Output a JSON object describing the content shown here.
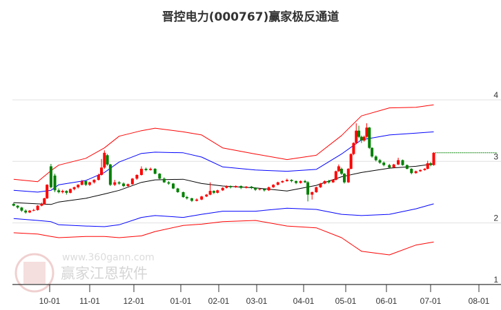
{
  "title": "晋控电力(000767)赢家极反通道",
  "watermark": {
    "brand": "赢家江恩软件",
    "url": "www.360gann.com",
    "seal": [
      "江",
      "赢",
      "恩",
      "家"
    ]
  },
  "colors": {
    "up": "#ff0000",
    "down": "#008000",
    "outer_band": "#ff0000",
    "inner_band": "#0000ff",
    "middle": "#000000",
    "last_price_line": "#008000",
    "grid": "#e0e0e0"
  },
  "chart_data": {
    "type": "candlestick",
    "title": "晋控电力(000767)赢家极反通道",
    "ylim": [
      1,
      4
    ],
    "y_ticks": [
      1,
      2,
      3,
      4
    ],
    "x_ticks": [
      "10-01",
      "11-01",
      "12-01",
      "01-01",
      "02-01",
      "03-01",
      "04-01",
      "05-01",
      "06-01",
      "07-01",
      "08-01"
    ],
    "grid": "horizontal",
    "candle_fields": [
      "date",
      "open",
      "high",
      "low",
      "close"
    ],
    "candles": [
      [
        "09-04",
        2.31,
        2.33,
        2.27,
        2.28
      ],
      [
        "09-07",
        2.28,
        2.29,
        2.23,
        2.25
      ],
      [
        "09-10",
        2.25,
        2.26,
        2.18,
        2.2
      ],
      [
        "09-13",
        2.2,
        2.22,
        2.15,
        2.17
      ],
      [
        "09-16",
        2.17,
        2.21,
        2.16,
        2.2
      ],
      [
        "09-19",
        2.2,
        2.23,
        2.19,
        2.21
      ],
      [
        "09-22",
        2.21,
        2.29,
        2.2,
        2.28
      ],
      [
        "09-25",
        2.28,
        2.33,
        2.27,
        2.31
      ],
      [
        "09-27",
        2.31,
        2.41,
        2.3,
        2.4
      ],
      [
        "09-29",
        2.4,
        2.63,
        2.39,
        2.62
      ],
      [
        "10-02",
        2.92,
        2.96,
        2.56,
        2.58
      ],
      [
        "10-05",
        2.77,
        2.8,
        2.5,
        2.53
      ],
      [
        "10-08",
        2.53,
        2.56,
        2.48,
        2.5
      ],
      [
        "10-11",
        2.5,
        2.54,
        2.48,
        2.52
      ],
      [
        "10-14",
        2.52,
        2.53,
        2.46,
        2.49
      ],
      [
        "10-17",
        2.49,
        2.56,
        2.48,
        2.55
      ],
      [
        "10-20",
        2.55,
        2.59,
        2.53,
        2.58
      ],
      [
        "10-23",
        2.58,
        2.63,
        2.56,
        2.62
      ],
      [
        "10-26",
        2.62,
        2.7,
        2.61,
        2.68
      ],
      [
        "10-29",
        2.68,
        2.69,
        2.6,
        2.62
      ],
      [
        "11-01",
        2.62,
        2.67,
        2.6,
        2.66
      ],
      [
        "11-04",
        2.66,
        2.71,
        2.64,
        2.7
      ],
      [
        "11-07",
        2.7,
        2.8,
        2.69,
        2.78
      ],
      [
        "11-09",
        2.78,
        3.04,
        2.77,
        2.9
      ],
      [
        "11-11",
        2.9,
        3.18,
        2.88,
        3.14
      ],
      [
        "11-13",
        3.1,
        3.12,
        2.93,
        2.95
      ],
      [
        "11-15",
        2.95,
        2.96,
        2.6,
        2.62
      ],
      [
        "11-18",
        2.62,
        2.7,
        2.6,
        2.66
      ],
      [
        "11-21",
        2.66,
        2.68,
        2.62,
        2.64
      ],
      [
        "11-24",
        2.64,
        2.66,
        2.58,
        2.6
      ],
      [
        "11-27",
        2.6,
        2.64,
        2.58,
        2.63
      ],
      [
        "11-30",
        2.63,
        2.73,
        2.62,
        2.72
      ],
      [
        "12-03",
        2.72,
        2.79,
        2.7,
        2.78
      ],
      [
        "12-06",
        2.78,
        2.92,
        2.77,
        2.88
      ],
      [
        "12-09",
        2.88,
        2.9,
        2.84,
        2.86
      ],
      [
        "12-12",
        2.86,
        2.9,
        2.85,
        2.88
      ],
      [
        "12-15",
        2.88,
        2.89,
        2.79,
        2.8
      ],
      [
        "12-18",
        2.8,
        2.81,
        2.71,
        2.72
      ],
      [
        "12-21",
        2.72,
        2.74,
        2.65,
        2.66
      ],
      [
        "12-24",
        2.66,
        2.68,
        2.62,
        2.64
      ],
      [
        "12-27",
        2.64,
        2.65,
        2.55,
        2.56
      ],
      [
        "12-30",
        2.56,
        2.57,
        2.49,
        2.5
      ],
      [
        "01-03",
        2.5,
        2.51,
        2.41,
        2.42
      ],
      [
        "01-06",
        2.42,
        2.44,
        2.38,
        2.4
      ],
      [
        "01-10",
        2.4,
        2.41,
        2.34,
        2.36
      ],
      [
        "01-14",
        2.36,
        2.4,
        2.35,
        2.38
      ],
      [
        "01-18",
        2.38,
        2.44,
        2.37,
        2.43
      ],
      [
        "01-22",
        2.43,
        2.47,
        2.42,
        2.46
      ],
      [
        "01-25",
        2.46,
        2.66,
        2.45,
        2.52
      ],
      [
        "01-28",
        2.52,
        2.53,
        2.47,
        2.49
      ],
      [
        "01-31",
        2.49,
        2.54,
        2.48,
        2.53
      ],
      [
        "02-04",
        2.53,
        2.58,
        2.52,
        2.57
      ],
      [
        "02-07",
        2.57,
        2.61,
        2.56,
        2.6
      ],
      [
        "02-10",
        2.6,
        2.61,
        2.56,
        2.58
      ],
      [
        "02-14",
        2.58,
        2.61,
        2.57,
        2.6
      ],
      [
        "02-18",
        2.6,
        2.61,
        2.55,
        2.57
      ],
      [
        "02-22",
        2.57,
        2.6,
        2.56,
        2.59
      ],
      [
        "02-26",
        2.59,
        2.6,
        2.55,
        2.57
      ],
      [
        "02-29",
        2.57,
        2.58,
        2.52,
        2.54
      ],
      [
        "03-03",
        2.54,
        2.56,
        2.53,
        2.55
      ],
      [
        "03-06",
        2.55,
        2.56,
        2.51,
        2.53
      ],
      [
        "03-09",
        2.53,
        2.59,
        2.52,
        2.58
      ],
      [
        "03-12",
        2.58,
        2.63,
        2.57,
        2.62
      ],
      [
        "03-15",
        2.62,
        2.67,
        2.61,
        2.66
      ],
      [
        "03-18",
        2.66,
        2.69,
        2.65,
        2.68
      ],
      [
        "03-21",
        2.68,
        2.72,
        2.67,
        2.7
      ],
      [
        "03-24",
        2.7,
        2.71,
        2.66,
        2.68
      ],
      [
        "03-27",
        2.68,
        2.69,
        2.63,
        2.65
      ],
      [
        "03-30",
        2.65,
        2.69,
        2.64,
        2.68
      ],
      [
        "04-02",
        2.68,
        2.7,
        2.65,
        2.66
      ],
      [
        "04-04",
        2.66,
        2.68,
        2.35,
        2.46
      ],
      [
        "04-07",
        2.46,
        2.51,
        2.38,
        2.5
      ],
      [
        "04-10",
        2.5,
        2.59,
        2.49,
        2.58
      ],
      [
        "04-13",
        2.58,
        2.65,
        2.57,
        2.64
      ],
      [
        "04-16",
        2.64,
        2.69,
        2.63,
        2.68
      ],
      [
        "04-19",
        2.68,
        2.7,
        2.64,
        2.66
      ],
      [
        "04-22",
        2.66,
        2.71,
        2.65,
        2.7
      ],
      [
        "04-24",
        2.7,
        2.85,
        2.69,
        2.84
      ],
      [
        "04-26",
        2.84,
        2.95,
        2.83,
        2.92
      ],
      [
        "04-28",
        2.88,
        2.9,
        2.78,
        2.8
      ],
      [
        "04-30",
        2.8,
        2.81,
        2.64,
        2.66
      ],
      [
        "05-03",
        2.66,
        2.89,
        2.65,
        2.88
      ],
      [
        "05-05",
        2.88,
        3.13,
        2.87,
        3.12
      ],
      [
        "05-07",
        3.12,
        3.31,
        3.1,
        3.3
      ],
      [
        "05-09",
        3.3,
        3.62,
        3.28,
        3.5
      ],
      [
        "05-11",
        3.5,
        3.58,
        3.38,
        3.4
      ],
      [
        "05-13",
        3.4,
        3.42,
        3.3,
        3.34
      ],
      [
        "05-15",
        3.34,
        3.42,
        3.32,
        3.4
      ],
      [
        "05-17",
        3.4,
        3.62,
        3.38,
        3.55
      ],
      [
        "05-19",
        3.55,
        3.56,
        3.2,
        3.22
      ],
      [
        "05-21",
        3.22,
        3.23,
        3.06,
        3.08
      ],
      [
        "05-24",
        3.08,
        3.1,
        3.0,
        3.02
      ],
      [
        "05-27",
        3.02,
        3.04,
        2.96,
        2.98
      ],
      [
        "05-30",
        2.98,
        3.0,
        2.92,
        2.94
      ],
      [
        "06-03",
        2.94,
        2.96,
        2.88,
        2.9
      ],
      [
        "06-06",
        2.9,
        2.96,
        2.89,
        2.95
      ],
      [
        "06-09",
        2.95,
        3.06,
        2.94,
        3.02
      ],
      [
        "06-12",
        3.02,
        3.03,
        2.93,
        2.94
      ],
      [
        "06-15",
        2.94,
        2.95,
        2.87,
        2.88
      ],
      [
        "06-18",
        2.88,
        2.89,
        2.79,
        2.81
      ],
      [
        "06-21",
        2.81,
        2.85,
        2.8,
        2.84
      ],
      [
        "06-24",
        2.84,
        2.87,
        2.83,
        2.86
      ],
      [
        "06-27",
        2.86,
        2.89,
        2.85,
        2.88
      ],
      [
        "06-29",
        2.88,
        3.01,
        2.87,
        2.97
      ],
      [
        "07-01",
        2.97,
        2.99,
        2.92,
        2.94
      ],
      [
        "07-03",
        2.94,
        3.15,
        2.93,
        3.14
      ]
    ],
    "bands": {
      "dates": [
        "09-04",
        "09-22",
        "10-02",
        "10-08",
        "10-29",
        "11-11",
        "11-21",
        "12-06",
        "12-15",
        "01-03",
        "01-18",
        "02-04",
        "02-29",
        "03-21",
        "04-10",
        "04-28",
        "05-13",
        "06-03",
        "06-21",
        "07-03"
      ],
      "upper_outer": [
        2.71,
        2.67,
        2.85,
        2.94,
        3.05,
        3.22,
        3.41,
        3.5,
        3.54,
        3.48,
        3.43,
        3.22,
        3.12,
        3.03,
        3.1,
        3.42,
        3.74,
        3.87,
        3.88,
        3.92
      ],
      "upper_inner": [
        2.53,
        2.5,
        2.53,
        2.62,
        2.69,
        2.82,
        2.99,
        3.13,
        3.15,
        3.14,
        3.07,
        2.91,
        2.86,
        2.84,
        2.87,
        3.12,
        3.35,
        3.43,
        3.46,
        3.48
      ],
      "middle": [
        2.33,
        2.31,
        2.3,
        2.34,
        2.4,
        2.47,
        2.53,
        2.66,
        2.7,
        2.71,
        2.64,
        2.6,
        2.57,
        2.52,
        2.61,
        2.75,
        2.82,
        2.89,
        2.92,
        2.96
      ],
      "lower_inner": [
        2.07,
        2.04,
        2.02,
        1.97,
        1.95,
        1.94,
        1.97,
        2.09,
        2.12,
        2.09,
        2.14,
        2.19,
        2.19,
        2.24,
        2.22,
        2.14,
        2.12,
        2.14,
        2.23,
        2.31
      ],
      "lower_outer": [
        1.84,
        1.82,
        1.78,
        1.76,
        1.78,
        1.78,
        1.76,
        1.79,
        1.86,
        1.96,
        1.98,
        2.02,
        2.04,
        1.95,
        1.92,
        1.76,
        1.54,
        1.48,
        1.64,
        1.69
      ]
    },
    "last_price": 3.14
  }
}
